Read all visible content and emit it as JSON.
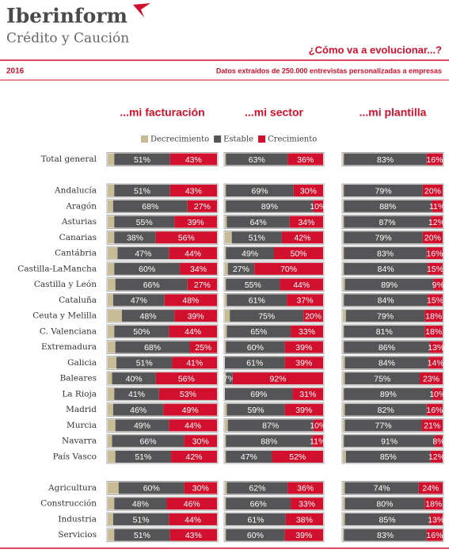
{
  "header": {
    "brand": "Iberinform",
    "subbrand": "Crédito y Caución",
    "question": "¿Cómo va a evolucionar...?",
    "year": "2016",
    "subtitle": "Datos extraídos de 250.000 entrevistas personalizadas a empresas"
  },
  "chart_data": {
    "type": "bar",
    "orientation": "horizontal",
    "stacked": true,
    "xlim": [
      0,
      100
    ],
    "categories": [
      "Total general",
      null,
      "Andalucía",
      "Aragón",
      "Asturias",
      "Canarias",
      "Cantábria",
      "Castilla-LaMancha",
      "Castilla y León",
      "Cataluña",
      "Ceuta y Melilla",
      "C. Valenciana",
      "Extremadura",
      "Galicia",
      "Baleares",
      "La Rioja",
      "Madrid",
      "Murcia",
      "Navarra",
      "País Vasco",
      null,
      "Agricultura",
      "Construcción",
      "Industria",
      "Servicios"
    ],
    "series": [
      {
        "name": "Decrecimiento",
        "color": "#c8bc96"
      },
      {
        "name": "Estable",
        "color": "#555557"
      },
      {
        "name": "Crecimiento",
        "color": "#d0102c"
      }
    ],
    "panels": [
      {
        "title": "...mi facturación",
        "series": [
          {
            "values": [
              6,
              null,
              6,
              5,
              6,
              6,
              9,
              6,
              7,
              5,
              13,
              6,
              7,
              8,
              4,
              6,
              5,
              7,
              4,
              7,
              null,
              10,
              6,
              5,
              6
            ]
          },
          {
            "values": [
              51,
              null,
              51,
              68,
              55,
              38,
              47,
              60,
              66,
              47,
              48,
              50,
              68,
              51,
              40,
              41,
              46,
              49,
              66,
              51,
              null,
              60,
              48,
              51,
              51
            ],
            "value_labels": [
              "51%",
              null,
              "51%",
              "68%",
              "55%",
              "38%",
              "47%",
              "60%",
              "66%",
              "47%",
              "48%",
              "50%",
              "68%",
              "51%",
              "40%",
              "41%",
              "46%",
              "49%",
              "66%",
              "51%",
              null,
              "60%",
              "48%",
              "51%",
              "51%"
            ]
          },
          {
            "values": [
              43,
              null,
              43,
              27,
              39,
              56,
              44,
              34,
              27,
              48,
              39,
              44,
              25,
              41,
              56,
              53,
              49,
              44,
              30,
              42,
              null,
              30,
              46,
              44,
              43
            ],
            "value_labels": [
              "43%",
              null,
              "43%",
              "27%",
              "39%",
              "56%",
              "44%",
              "34%",
              "27%",
              "48%",
              "39%",
              "44%",
              "25%",
              "41%",
              "56%",
              "53%",
              "49%",
              "44%",
              "30%",
              "42%",
              null,
              "30%",
              "46%",
              "44%",
              "43%"
            ]
          }
        ]
      },
      {
        "title": "...mi sector",
        "series": [
          {
            "values": [
              1,
              null,
              1,
              1,
              2,
              7,
              1,
              3,
              1,
              2,
              5,
              2,
              1,
              0,
              1,
              0,
              2,
              3,
              1,
              1,
              null,
              2,
              1,
              1,
              1
            ]
          },
          {
            "values": [
              63,
              null,
              69,
              89,
              64,
              51,
              49,
              27,
              55,
              61,
              75,
              65,
              60,
              61,
              7,
              69,
              59,
              87,
              88,
              47,
              null,
              62,
              66,
              61,
              60
            ],
            "value_labels": [
              "63%",
              null,
              "69%",
              "89%",
              "64%",
              "51%",
              "49%",
              "27%",
              "55%",
              "61%",
              "75%",
              "65%",
              "60%",
              "61%",
              "7%",
              "69%",
              "59%",
              "87%",
              "88%",
              "47%",
              null,
              "62%",
              "66%",
              "61%",
              "60%"
            ]
          },
          {
            "values": [
              36,
              null,
              30,
              10,
              34,
              42,
              50,
              70,
              44,
              37,
              20,
              33,
              39,
              39,
              92,
              31,
              39,
              10,
              11,
              52,
              null,
              36,
              33,
              38,
              39
            ],
            "value_labels": [
              "36%",
              null,
              "30%",
              "10%",
              "34%",
              "42%",
              "50%",
              "70%",
              "44%",
              "37%",
              "20%",
              "33%",
              "39%",
              "39%",
              "92%",
              "31%",
              "39%",
              "10%",
              "11%",
              "52%",
              null,
              "36%",
              "33%",
              "38%",
              "39%"
            ]
          }
        ]
      },
      {
        "title": "...mi plantilla",
        "series": [
          {
            "values": [
              1,
              null,
              1,
              1,
              1,
              1,
              1,
              1,
              2,
              1,
              3,
              1,
              1,
              2,
              2,
              1,
              2,
              2,
              1,
              3,
              null,
              2,
              2,
              2,
              1
            ]
          },
          {
            "values": [
              83,
              null,
              79,
              88,
              87,
              79,
              83,
              84,
              89,
              84,
              79,
              81,
              86,
              84,
              75,
              89,
              82,
              77,
              91,
              85,
              null,
              74,
              80,
              85,
              83
            ],
            "value_labels": [
              "83%",
              null,
              "79%",
              "88%",
              "87%",
              "79%",
              "83%",
              "84%",
              "89%",
              "84%",
              "79%",
              "81%",
              "86%",
              "84%",
              "75%",
              "89%",
              "82%",
              "77%",
              "91%",
              "85%",
              null,
              "74%",
              "80%",
              "85%",
              "83%"
            ]
          },
          {
            "values": [
              16,
              null,
              20,
              11,
              12,
              20,
              16,
              15,
              9,
              15,
              18,
              18,
              13,
              14,
              23,
              10,
              16,
              21,
              8,
              12,
              null,
              24,
              18,
              13,
              16
            ],
            "value_labels": [
              "16%",
              null,
              "20%",
              "11%",
              "12%",
              "20%",
              "16%",
              "15%",
              "9%",
              "15%",
              "18%",
              "18%",
              "13%",
              "14%",
              "23%",
              "10%",
              "16%",
              "21%",
              "8%",
              "12%",
              null,
              "24%",
              "18%",
              "13%",
              "16%"
            ]
          }
        ]
      }
    ]
  }
}
